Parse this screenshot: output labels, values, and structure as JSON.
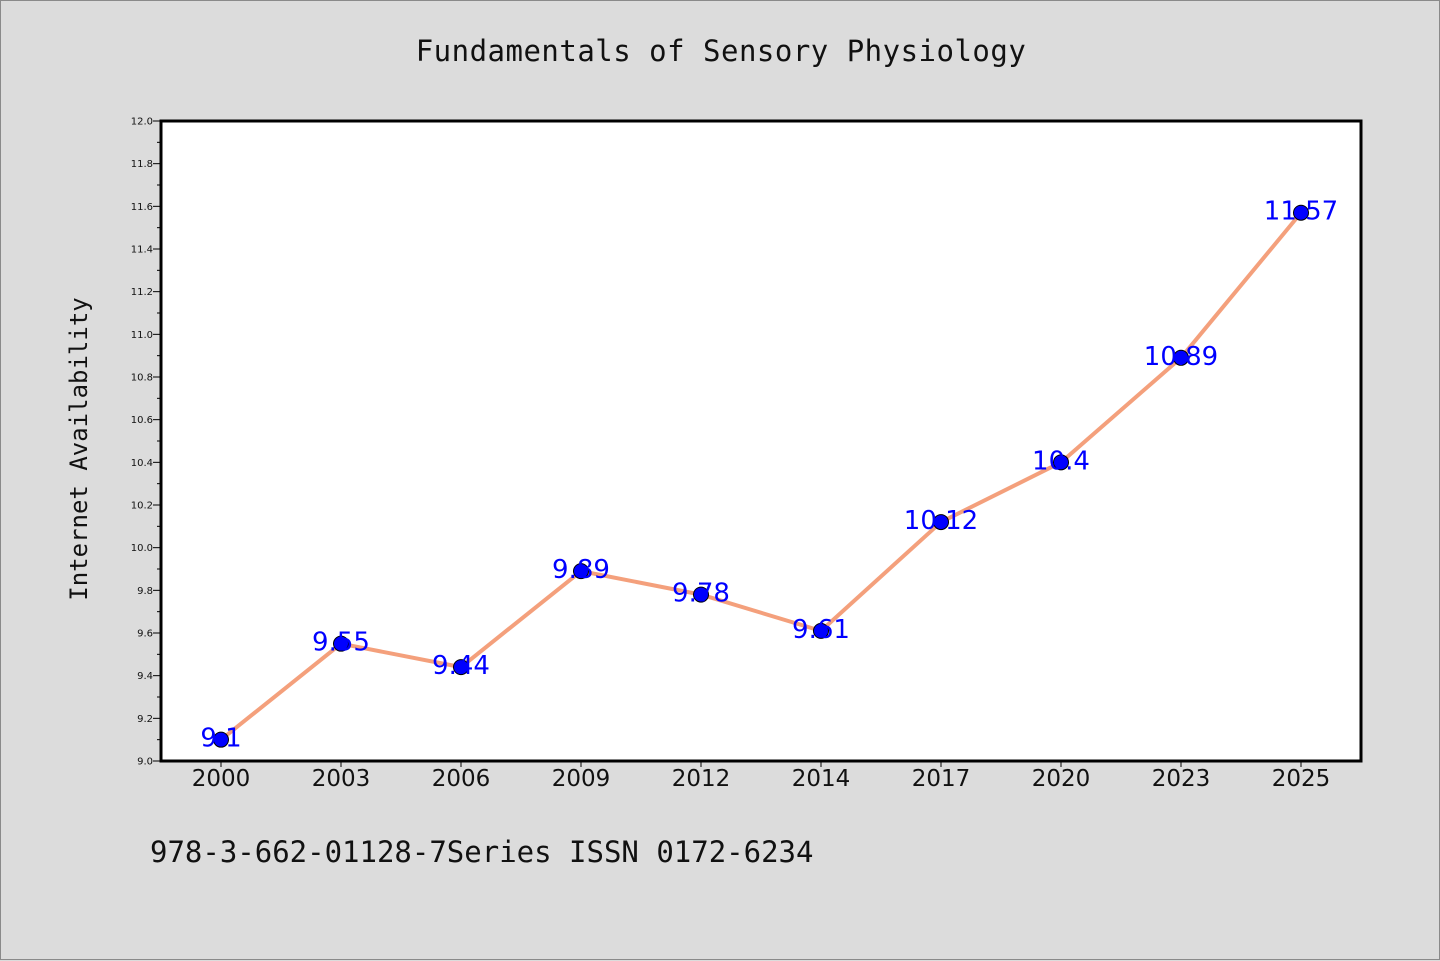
{
  "footer": "978-3-662-01128-7Series ISSN 0172-6234",
  "colors": {
    "background": "#dcdcdc",
    "plot_area": "#ffffff",
    "line": "#f4a07c",
    "marker": "#0000ff",
    "data_label": "#0000ff"
  },
  "chart_data": {
    "type": "line",
    "title": "Fundamentals of Sensory Physiology",
    "xlabel": "",
    "ylabel": "Internet Availability",
    "categories": [
      "2000",
      "2003",
      "2006",
      "2009",
      "2012",
      "2014",
      "2017",
      "2020",
      "2023",
      "2025"
    ],
    "series": [
      {
        "values": [
          9.1,
          9.55,
          9.44,
          9.89,
          9.78,
          9.61,
          10.12,
          10.4,
          10.89,
          11.57
        ],
        "data_labels": [
          "9.1",
          "9.55",
          "9.44",
          "9.89",
          "9.78",
          "9.61",
          "10.12",
          "10.4",
          "10.89",
          "11.57"
        ]
      }
    ],
    "ylim": [
      9.0,
      12.0
    ],
    "yticks": [
      "9.0",
      "9.2",
      "9.4",
      "9.6",
      "9.8",
      "10.0",
      "10.2",
      "10.4",
      "10.6",
      "10.8",
      "11.0",
      "11.2",
      "11.4",
      "11.6",
      "11.8",
      "12.0"
    ],
    "grid": false,
    "legend": "none"
  }
}
